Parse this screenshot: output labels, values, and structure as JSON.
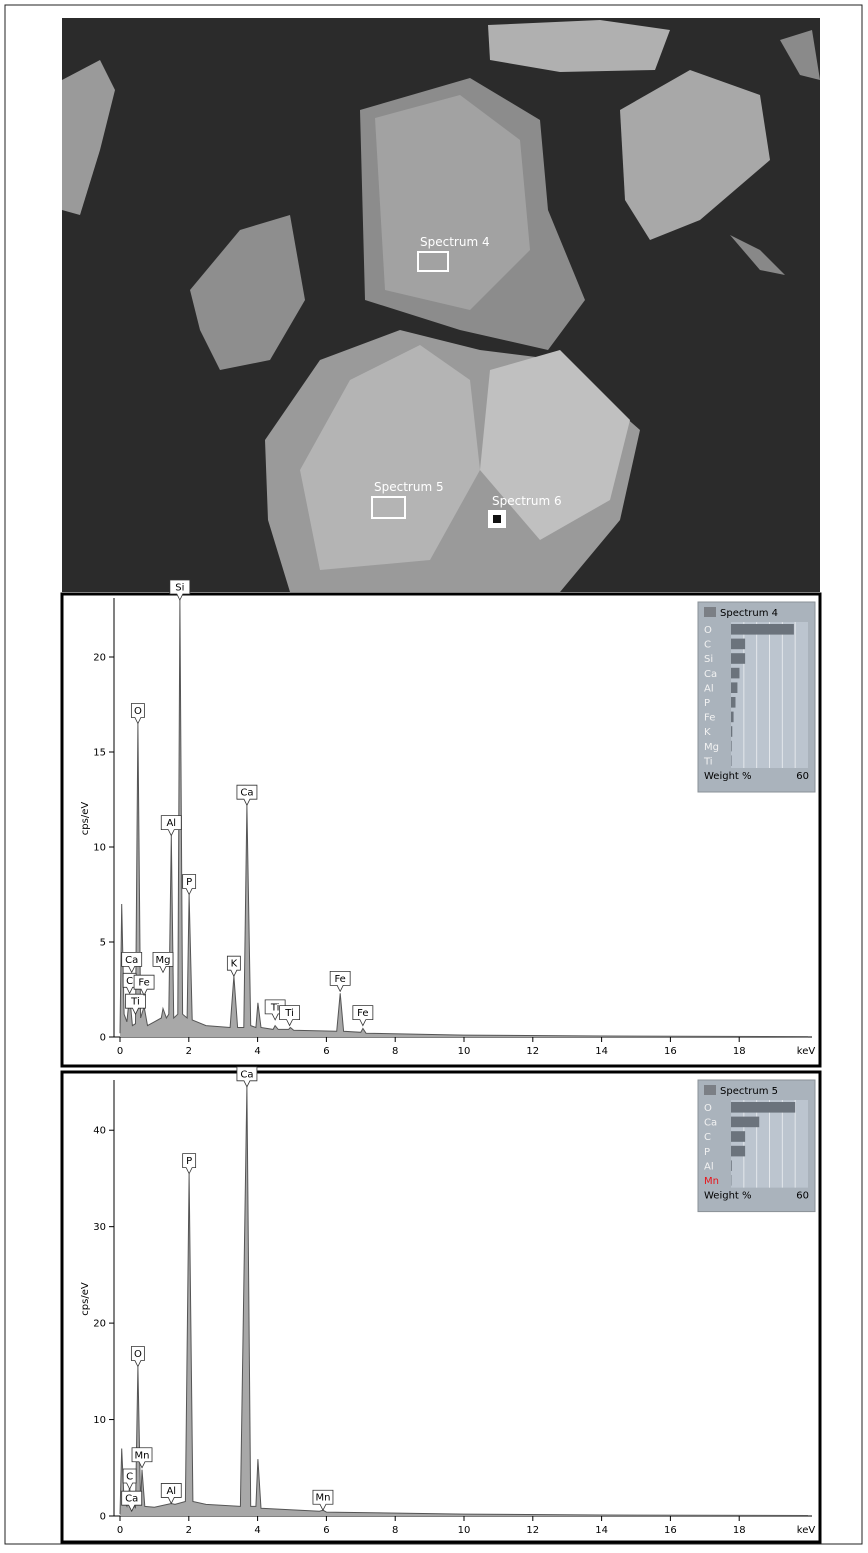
{
  "image": {
    "labels": [
      "Spectrum 4",
      "Spectrum 5",
      "Spectrum 6"
    ]
  },
  "chart_data": [
    {
      "type": "area",
      "xlabel": "keV",
      "ylabel": "cps/eV",
      "xlim": [
        0,
        20
      ],
      "xticks": [
        0,
        2,
        4,
        6,
        8,
        10,
        12,
        14,
        16,
        18
      ],
      "ylim": [
        0,
        23
      ],
      "yticks": [
        0,
        5,
        10,
        15,
        20
      ],
      "x": [
        0,
        0.05,
        0.12,
        0.2,
        0.28,
        0.36,
        0.45,
        0.52,
        0.6,
        0.7,
        0.8,
        1.0,
        1.2,
        1.25,
        1.35,
        1.42,
        1.49,
        1.56,
        1.68,
        1.74,
        1.82,
        1.95,
        2.01,
        2.1,
        2.5,
        3.2,
        3.31,
        3.42,
        3.6,
        3.69,
        3.8,
        3.95,
        4.01,
        4.1,
        4.45,
        4.51,
        4.6,
        4.9,
        4.95,
        5.05,
        6.3,
        6.4,
        6.5,
        7.0,
        7.06,
        7.15,
        10,
        14,
        20
      ],
      "series": [
        {
          "name": "Spectrum 4",
          "color": "#a8a8a8",
          "values": [
            0.2,
            7,
            1.2,
            0.8,
            2.2,
            0.6,
            0.7,
            16.5,
            1.0,
            1.6,
            0.6,
            0.8,
            1.0,
            1.5,
            1.0,
            1.2,
            10.6,
            1.0,
            1.2,
            23,
            1.2,
            1.0,
            7.5,
            0.9,
            0.6,
            0.5,
            3.2,
            0.5,
            0.5,
            12.2,
            0.6,
            0.5,
            1.8,
            0.5,
            0.4,
            0.6,
            0.4,
            0.4,
            0.5,
            0.35,
            0.3,
            2.3,
            0.3,
            0.25,
            0.45,
            0.2,
            0.1,
            0.05,
            0.02
          ]
        }
      ],
      "annotations": [
        {
          "text": "Si",
          "x": 1.74,
          "y": 23
        },
        {
          "text": "O",
          "x": 0.52,
          "y": 16.5
        },
        {
          "text": "Al",
          "x": 1.49,
          "y": 10.6
        },
        {
          "text": "Ca",
          "x": 3.69,
          "y": 12.2
        },
        {
          "text": "P",
          "x": 2.01,
          "y": 7.5
        },
        {
          "text": "K",
          "x": 3.31,
          "y": 3.2
        },
        {
          "text": "Ca",
          "x": 0.34,
          "y": 3.4
        },
        {
          "text": "C",
          "x": 0.28,
          "y": 2.3
        },
        {
          "text": "Ti",
          "x": 0.45,
          "y": 1.2
        },
        {
          "text": "Fe",
          "x": 0.7,
          "y": 2.2
        },
        {
          "text": "Mg",
          "x": 1.25,
          "y": 3.4
        },
        {
          "text": "Ti",
          "x": 4.51,
          "y": 0.9
        },
        {
          "text": "Ti",
          "x": 4.93,
          "y": 0.6
        },
        {
          "text": "Fe",
          "x": 6.4,
          "y": 2.4
        },
        {
          "text": "Fe",
          "x": 7.06,
          "y": 0.6
        }
      ],
      "inset": {
        "categories": [
          "O",
          "C",
          "Si",
          "Ca",
          "Al",
          "P",
          "Fe",
          "K",
          "Mg",
          "Ti"
        ],
        "values": [
          49,
          11,
          11,
          6.6,
          5,
          3.5,
          2,
          1,
          0.5,
          0.4
        ],
        "label_colors": [
          "#f2f2f2",
          "#f2f2f2",
          "#f2f2f2",
          "#f2f2f2",
          "#f2f2f2",
          "#f2f2f2",
          "#f2f2f2",
          "#f2f2f2",
          "#f2f2f2",
          "#f2f2f2"
        ],
        "xlabel": "Weight %",
        "xlim": [
          0,
          60
        ],
        "xgrid": [
          10,
          20,
          30,
          40,
          50
        ]
      }
    },
    {
      "type": "area",
      "xlabel": "keV",
      "ylabel": "cps/eV",
      "xlim": [
        0,
        20
      ],
      "xticks": [
        0,
        2,
        4,
        6,
        8,
        10,
        12,
        14,
        16,
        18
      ],
      "ylim": [
        0,
        45
      ],
      "yticks": [
        0,
        10,
        20,
        30,
        40
      ],
      "x": [
        0,
        0.05,
        0.12,
        0.2,
        0.28,
        0.34,
        0.4,
        0.45,
        0.52,
        0.6,
        0.64,
        0.72,
        1.0,
        1.49,
        1.6,
        1.9,
        2.01,
        2.12,
        2.5,
        3.5,
        3.69,
        3.8,
        3.95,
        4.01,
        4.1,
        5.8,
        5.9,
        6.0,
        10,
        14,
        20
      ],
      "series": [
        {
          "name": "Spectrum 5",
          "color": "#a8a8a8",
          "values": [
            0.2,
            7,
            1.5,
            1,
            3,
            1,
            1.2,
            0.8,
            15.5,
            1.2,
            4.8,
            1.0,
            0.9,
            1.3,
            1.2,
            1.5,
            35.5,
            1.5,
            1.2,
            1.0,
            44.5,
            1.0,
            1.0,
            5.9,
            0.8,
            0.5,
            0.6,
            0.4,
            0.2,
            0.1,
            0.05
          ]
        }
      ],
      "annotations": [
        {
          "text": "Ca",
          "x": 3.69,
          "y": 44.5
        },
        {
          "text": "P",
          "x": 2.01,
          "y": 35.5
        },
        {
          "text": "O",
          "x": 0.52,
          "y": 15.5
        },
        {
          "text": "Mn",
          "x": 0.64,
          "y": 5
        },
        {
          "text": "C",
          "x": 0.28,
          "y": 2.8
        },
        {
          "text": "Ca",
          "x": 0.34,
          "y": 0.5
        },
        {
          "text": "Al",
          "x": 1.49,
          "y": 1.3
        },
        {
          "text": "Mn",
          "x": 5.9,
          "y": 0.6
        }
      ],
      "inset": {
        "categories": [
          "O",
          "Ca",
          "C",
          "P",
          "Al",
          "Mn"
        ],
        "values": [
          50,
          22,
          11,
          11,
          0.6,
          0.3
        ],
        "label_colors": [
          "#f2f2f2",
          "#f2f2f2",
          "#f2f2f2",
          "#f2f2f2",
          "#f2f2f2",
          "#e8141b"
        ],
        "xlabel": "Weight %",
        "xlim": [
          0,
          60
        ],
        "xgrid": [
          10,
          20,
          30,
          40,
          50
        ]
      }
    }
  ]
}
